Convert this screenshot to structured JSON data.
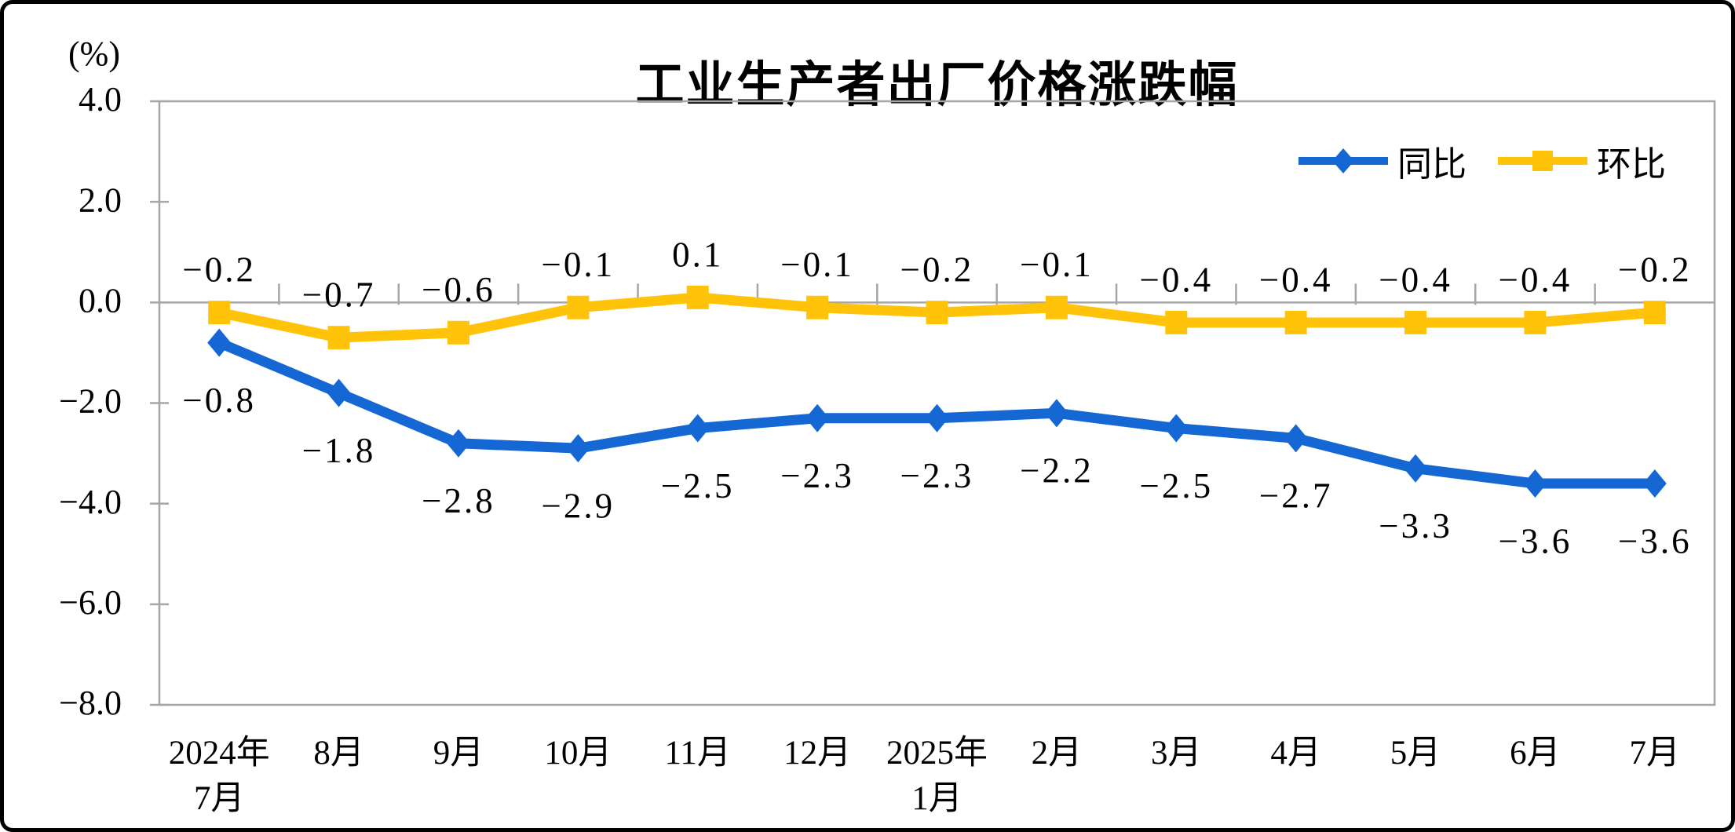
{
  "page": {
    "background": "#ffffff",
    "frame_border_color": "#000000"
  },
  "chart_data": {
    "type": "line",
    "title": "工业生产者出厂价格涨跌幅",
    "unit_label": "(%)",
    "grid": false,
    "legend_position": "top-right-inside",
    "axis_color": "#A6A6A6",
    "text_color": "#000000",
    "categories": [
      [
        "2024年",
        "7月"
      ],
      [
        "8月"
      ],
      [
        "9月"
      ],
      [
        "10月"
      ],
      [
        "11月"
      ],
      [
        "12月"
      ],
      [
        "2025年",
        "1月"
      ],
      [
        "2月"
      ],
      [
        "3月"
      ],
      [
        "4月"
      ],
      [
        "5月"
      ],
      [
        "6月"
      ],
      [
        "7月"
      ]
    ],
    "y_axis": {
      "min": -8.0,
      "max": 4.0,
      "step": 2.0,
      "tick_labels": [
        "4.0",
        "2.0",
        "0.0",
        "−2.0",
        "−4.0",
        "−6.0",
        "−8.0"
      ]
    },
    "series": [
      {
        "id": "yoy",
        "name": "同比",
        "color": "#1568D4",
        "marker": "diamond",
        "label_position": "below",
        "values": [
          -0.8,
          -1.8,
          -2.8,
          -2.9,
          -2.5,
          -2.3,
          -2.3,
          -2.2,
          -2.5,
          -2.7,
          -3.3,
          -3.6,
          -3.6
        ],
        "labels": [
          "−0.8",
          "−1.8",
          "−2.8",
          "−2.9",
          "−2.5",
          "−2.3",
          "−2.3",
          "−2.2",
          "−2.5",
          "−2.7",
          "−3.3",
          "−3.6",
          "−3.6"
        ]
      },
      {
        "id": "mom",
        "name": "环比",
        "color": "#FFC40A",
        "marker": "square",
        "label_position": "above",
        "values": [
          -0.2,
          -0.7,
          -0.6,
          -0.1,
          0.1,
          -0.1,
          -0.2,
          -0.1,
          -0.4,
          -0.4,
          -0.4,
          -0.4,
          -0.2
        ],
        "labels": [
          "−0.2",
          "−0.7",
          "−0.6",
          "−0.1",
          "0.1",
          "−0.1",
          "−0.2",
          "−0.1",
          "−0.4",
          "−0.4",
          "−0.4",
          "−0.4",
          "−0.2"
        ]
      }
    ]
  }
}
